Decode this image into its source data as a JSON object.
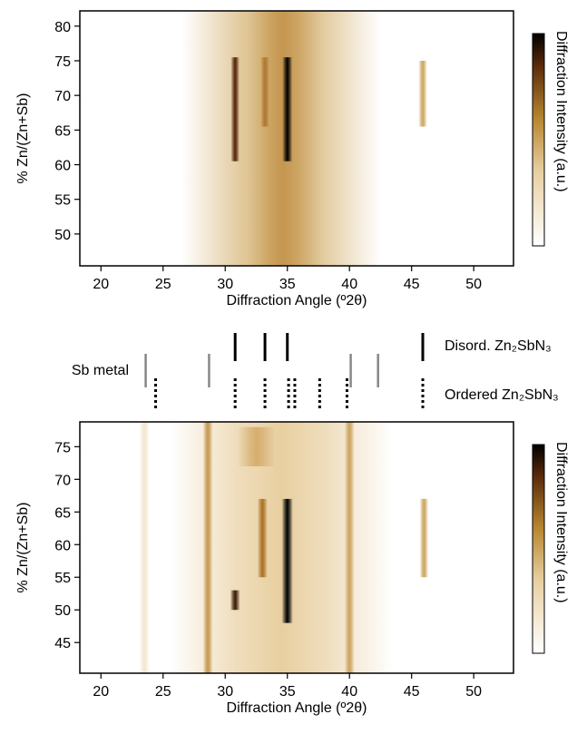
{
  "chart_data": [
    {
      "type": "heatmap",
      "xlabel": "Diffraction Angle (º2θ)",
      "ylabel": "% Zn/(Zn+Sb)",
      "colorbar_label": "Diffraction Intensity (a.u.)",
      "xlim": [
        18.3,
        53.2
      ],
      "ylim": [
        45.4,
        82.2
      ],
      "xticks": [
        20,
        25,
        30,
        35,
        40,
        45,
        50
      ],
      "yticks": [
        50,
        55,
        60,
        65,
        70,
        75,
        80
      ],
      "features": [
        {
          "x": 34.5,
          "width": 16,
          "y": [
            45.4,
            82.2
          ],
          "intensity": 0.45
        },
        {
          "x": 34.8,
          "width": 6,
          "y": [
            45.4,
            82.2
          ],
          "intensity": 0.3
        },
        {
          "x": 30.8,
          "width": 0.7,
          "y": [
            60.5,
            75.5
          ],
          "intensity": 0.85
        },
        {
          "x": 33.2,
          "width": 0.7,
          "y": [
            65.5,
            75.5
          ],
          "intensity": 0.45
        },
        {
          "x": 35.0,
          "width": 0.8,
          "y": [
            60.5,
            75.5
          ],
          "intensity": 1.0
        },
        {
          "x": 45.9,
          "width": 0.7,
          "y": [
            65.5,
            75.0
          ],
          "intensity": 0.5
        }
      ]
    },
    {
      "type": "reference",
      "xlim": [
        18.3,
        53.2
      ],
      "series": [
        {
          "name": "Sb metal",
          "color": "#888888",
          "style": "solid",
          "positions": [
            23.6,
            28.7,
            40.1,
            42.3
          ]
        },
        {
          "name": "Disord. Zn₂SbN₃",
          "color": "#000000",
          "style": "solid",
          "positions": [
            30.8,
            33.2,
            35.0,
            45.9
          ]
        },
        {
          "name": "Ordered Zn₂SbN₃",
          "color": "#000000",
          "style": "dotted",
          "positions": [
            24.4,
            30.8,
            33.2,
            35.1,
            35.6,
            37.6,
            39.8,
            45.9
          ]
        }
      ]
    },
    {
      "type": "heatmap",
      "xlabel": "Diffraction Angle (º2θ)",
      "ylabel": "% Zn/(Zn+Sb)",
      "colorbar_label": "Diffraction Intensity (a.u.)",
      "xlim": [
        18.3,
        53.2
      ],
      "ylim": [
        40.3,
        78.8
      ],
      "xticks": [
        20,
        25,
        30,
        35,
        40,
        45,
        50
      ],
      "yticks": [
        45,
        50,
        55,
        60,
        65,
        70,
        75
      ],
      "features": [
        {
          "x": 34.5,
          "width": 18,
          "y": [
            40.3,
            78.8
          ],
          "intensity": 0.35
        },
        {
          "x": 28.6,
          "width": 0.8,
          "y": [
            40.3,
            78.8
          ],
          "intensity": 0.5
        },
        {
          "x": 40.0,
          "width": 0.8,
          "y": [
            40.3,
            78.8
          ],
          "intensity": 0.45
        },
        {
          "x": 23.5,
          "width": 0.8,
          "y": [
            40.3,
            78.8
          ],
          "intensity": 0.18
        },
        {
          "x": 30.8,
          "width": 0.8,
          "y": [
            50.0,
            53.0
          ],
          "intensity": 0.9
        },
        {
          "x": 33.0,
          "width": 0.8,
          "y": [
            55.0,
            67.0
          ],
          "intensity": 0.6
        },
        {
          "x": 35.0,
          "width": 0.9,
          "y": [
            48.0,
            67.0
          ],
          "intensity": 1.0
        },
        {
          "x": 46.0,
          "width": 0.7,
          "y": [
            55.0,
            67.0
          ],
          "intensity": 0.5
        },
        {
          "x": 32.5,
          "width": 3,
          "y": [
            72.0,
            78.0
          ],
          "intensity": 0.35
        }
      ]
    }
  ]
}
